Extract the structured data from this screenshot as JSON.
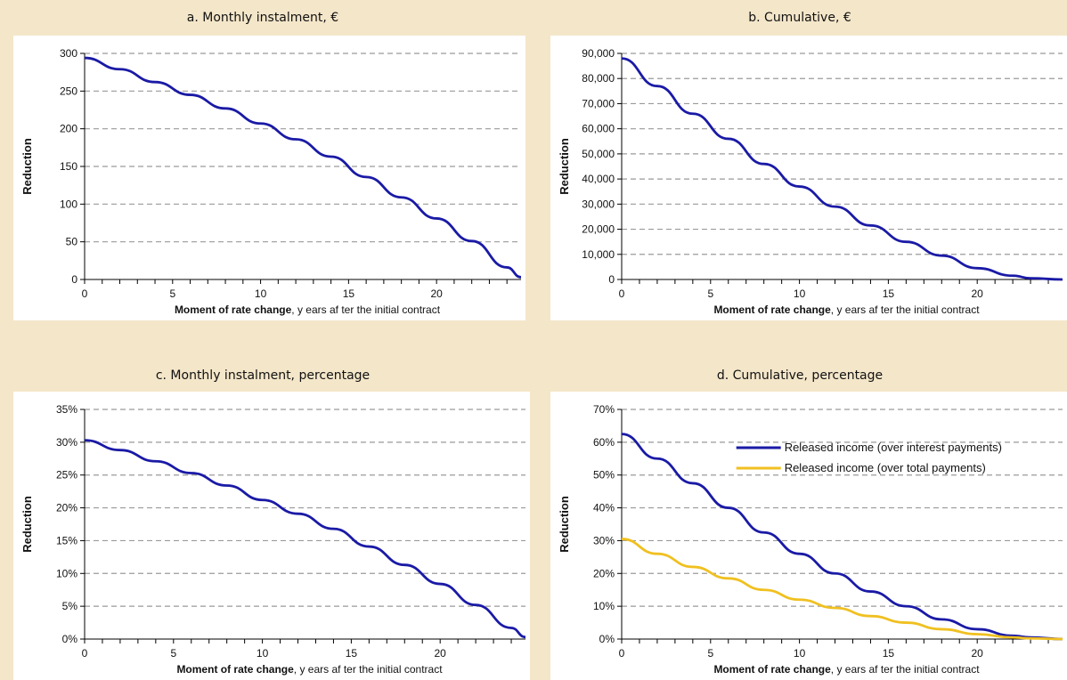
{
  "chart_data": [
    {
      "type": "line",
      "title": "a. Monthly instalment, €",
      "ylabel": "Reduction",
      "xlabel_bold": "Moment of rate change",
      "xlabel_rest": ", y ears af ter the initial contract",
      "xlim": [
        0,
        24.8
      ],
      "ylim": [
        0,
        300
      ],
      "xticks": [
        0,
        5,
        10,
        15,
        20
      ],
      "xtick_labels": [
        "0",
        "5",
        "10",
        "15",
        "20"
      ],
      "yticks": [
        0,
        50,
        100,
        150,
        200,
        250,
        300
      ],
      "ytick_labels": [
        "0",
        "50",
        "100",
        "150",
        "200",
        "250",
        "300"
      ],
      "grid": true,
      "series": [
        {
          "color": "#1a1aa6",
          "x": [
            0,
            2,
            4,
            6,
            8,
            10,
            12,
            14,
            16,
            18,
            20,
            22,
            24,
            24.8
          ],
          "y": [
            294,
            279,
            262,
            245,
            227,
            207,
            186,
            163,
            136,
            109,
            81,
            51,
            16,
            3
          ]
        }
      ]
    },
    {
      "type": "line",
      "title": "b. Cumulative, €",
      "ylabel": "Reduction",
      "xlabel_bold": "Moment of rate change",
      "xlabel_rest": ", y ears af ter the initial contract",
      "xlim": [
        0,
        24.8
      ],
      "ylim": [
        0,
        90000
      ],
      "xticks": [
        0,
        5,
        10,
        15,
        20
      ],
      "xtick_labels": [
        "0",
        "5",
        "10",
        "15",
        "20"
      ],
      "yticks": [
        0,
        10000,
        20000,
        30000,
        40000,
        50000,
        60000,
        70000,
        80000,
        90000
      ],
      "ytick_labels": [
        "0",
        "10,000",
        "20,000",
        "30,000",
        "40,000",
        "50,000",
        "60,000",
        "70,000",
        "80,000",
        "90,000"
      ],
      "grid": true,
      "series": [
        {
          "color": "#1a1aa6",
          "x": [
            0,
            2,
            4,
            6,
            8,
            10,
            12,
            14,
            16,
            18,
            20,
            22,
            23,
            24.8
          ],
          "y": [
            88000,
            77000,
            66000,
            56000,
            46000,
            37000,
            29000,
            21500,
            15000,
            9500,
            4500,
            1500,
            500,
            0
          ]
        }
      ]
    },
    {
      "type": "line",
      "title": "c. Monthly instalment, percentage",
      "ylabel": "Reduction",
      "xlabel_bold": "Moment of rate change",
      "xlabel_rest": ", y ears af ter the initial contract",
      "xlim": [
        0,
        24.8
      ],
      "ylim": [
        0,
        35
      ],
      "xticks": [
        0,
        5,
        10,
        15,
        20
      ],
      "xtick_labels": [
        "0",
        "5",
        "10",
        "15",
        "20"
      ],
      "yticks": [
        0,
        5,
        10,
        15,
        20,
        25,
        30,
        35
      ],
      "ytick_labels": [
        "0%",
        "5%",
        "10%",
        "15%",
        "20%",
        "25%",
        "30%",
        "35%"
      ],
      "grid": true,
      "series": [
        {
          "color": "#1a1aa6",
          "x": [
            0,
            2,
            4,
            6,
            8,
            10,
            12,
            14,
            16,
            18,
            20,
            22,
            24,
            24.8
          ],
          "y": [
            30.3,
            28.8,
            27.1,
            25.3,
            23.4,
            21.2,
            19.1,
            16.8,
            14.1,
            11.3,
            8.4,
            5.2,
            1.7,
            0.3
          ]
        }
      ]
    },
    {
      "type": "line",
      "title": "d. Cumulative, percentage",
      "ylabel": "Reduction",
      "xlabel_bold": "Moment of rate change",
      "xlabel_rest": ", y ears af ter the initial contract",
      "xlim": [
        0,
        24.8
      ],
      "ylim": [
        0,
        70
      ],
      "xticks": [
        0,
        5,
        10,
        15,
        20
      ],
      "xtick_labels": [
        "0",
        "5",
        "10",
        "15",
        "20"
      ],
      "yticks": [
        0,
        10,
        20,
        30,
        40,
        50,
        60,
        70
      ],
      "ytick_labels": [
        "0%",
        "10%",
        "20%",
        "30%",
        "40%",
        "50%",
        "60%",
        "70%"
      ],
      "grid": true,
      "legend_position": "top-right",
      "series": [
        {
          "name": "Released income (over interest payments)",
          "color": "#1a1aa6",
          "x": [
            0,
            2,
            4,
            6,
            8,
            10,
            12,
            14,
            16,
            18,
            20,
            22,
            23,
            24.8
          ],
          "y": [
            62.5,
            55,
            47.5,
            40,
            32.5,
            26,
            20,
            14.5,
            10,
            6,
            3,
            1,
            0.5,
            0
          ]
        },
        {
          "name": "Released income (over total payments)",
          "color": "#f0c020",
          "x": [
            0,
            2,
            4,
            6,
            8,
            10,
            12,
            14,
            16,
            18,
            20,
            22,
            23,
            24.8
          ],
          "y": [
            30.5,
            26,
            22,
            18.5,
            15,
            12,
            9.5,
            7,
            5,
            3,
            1.5,
            0.5,
            0.2,
            0
          ]
        }
      ]
    }
  ]
}
